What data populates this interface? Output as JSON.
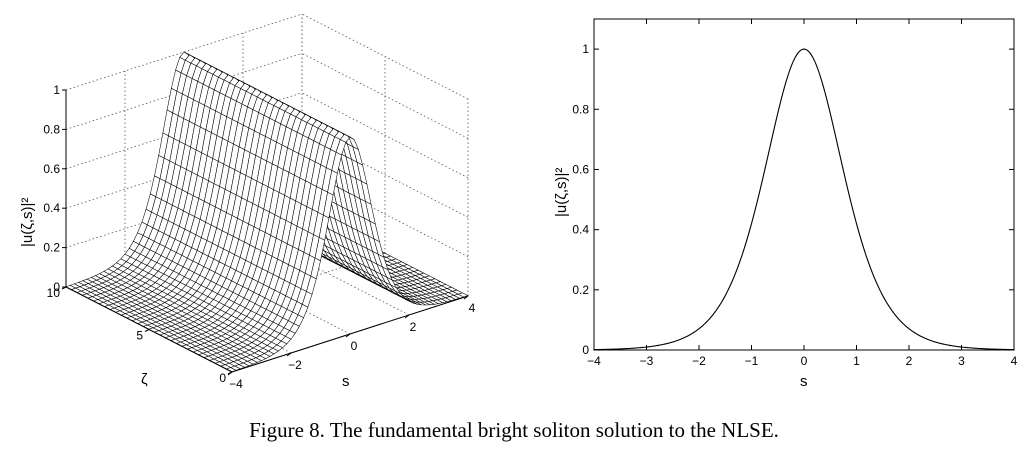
{
  "caption": "Figure 8. The fundamental bright soliton solution to the NLSE.",
  "chart_data": [
    {
      "type": "surface",
      "function": "sech^2(s)",
      "zlabel": "|u(ζ,s)|²",
      "ylabel_zeta": "ζ",
      "xlabel_s": "s",
      "s_range": [
        -4,
        4
      ],
      "zeta_range": [
        0,
        10
      ],
      "z_range": [
        0,
        1
      ],
      "s_ticks": [
        "−4",
        "−2",
        "0",
        "2",
        "4"
      ],
      "zeta_ticks": [
        "0",
        "5",
        "10"
      ],
      "z_ticks": [
        "0",
        "0.2",
        "0.4",
        "0.6",
        "0.8",
        "1"
      ],
      "grid": true
    },
    {
      "type": "line",
      "function": "sech^2(s)",
      "ylabel": "|u(ζ,s)|²",
      "xlabel": "s",
      "xlim": [
        -4,
        4
      ],
      "ylim": [
        0,
        1.1
      ],
      "x_ticks": [
        "−4",
        "−3",
        "−2",
        "−1",
        "0",
        "1",
        "2",
        "3",
        "4"
      ],
      "y_ticks": [
        "0",
        "0.2",
        "0.4",
        "0.6",
        "0.8",
        "1"
      ],
      "x": [
        -4,
        -3.5,
        -3,
        -2.5,
        -2,
        -1.5,
        -1,
        -0.75,
        -0.5,
        -0.25,
        0,
        0.25,
        0.5,
        0.75,
        1,
        1.5,
        2,
        2.5,
        3,
        3.5,
        4
      ],
      "y": [
        0.0013,
        0.0036,
        0.0099,
        0.0266,
        0.0707,
        0.1807,
        0.42,
        0.6,
        0.7864,
        0.9402,
        1.0,
        0.9402,
        0.7864,
        0.6,
        0.42,
        0.1807,
        0.0707,
        0.0266,
        0.0099,
        0.0036,
        0.0013
      ],
      "grid": false
    }
  ]
}
